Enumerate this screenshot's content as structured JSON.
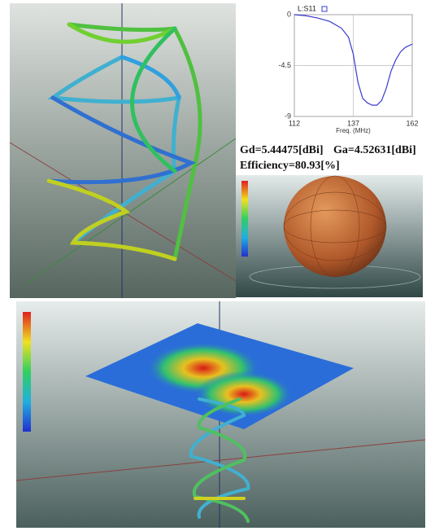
{
  "chart_data": {
    "type": "line",
    "xlabel": "Freq. (MHz)",
    "x": [
      112,
      117,
      122,
      127,
      132,
      135,
      137,
      139,
      141,
      143,
      145,
      147,
      149,
      151,
      153,
      155,
      157,
      159,
      162
    ],
    "series": [
      {
        "name": "L:S11",
        "color": "#3a3ad0",
        "values": [
          0,
          -0.1,
          -0.3,
          -0.6,
          -1.2,
          -2.0,
          -3.5,
          -6.0,
          -7.4,
          -7.8,
          -8.0,
          -8.0,
          -7.6,
          -6.5,
          -5.0,
          -4.0,
          -3.3,
          -2.9,
          -2.6
        ]
      }
    ],
    "xlim": [
      112,
      162
    ],
    "xticks": [
      112,
      137,
      162
    ],
    "ylim": [
      -9,
      0
    ],
    "yticks": [
      0,
      -4.5,
      -9
    ],
    "grid": true
  },
  "results": {
    "gd": "Gd=5.44475[dBi]",
    "ga": "Ga=4.52631[dBi]",
    "efficiency": "Efficiency=80.93[%]"
  }
}
